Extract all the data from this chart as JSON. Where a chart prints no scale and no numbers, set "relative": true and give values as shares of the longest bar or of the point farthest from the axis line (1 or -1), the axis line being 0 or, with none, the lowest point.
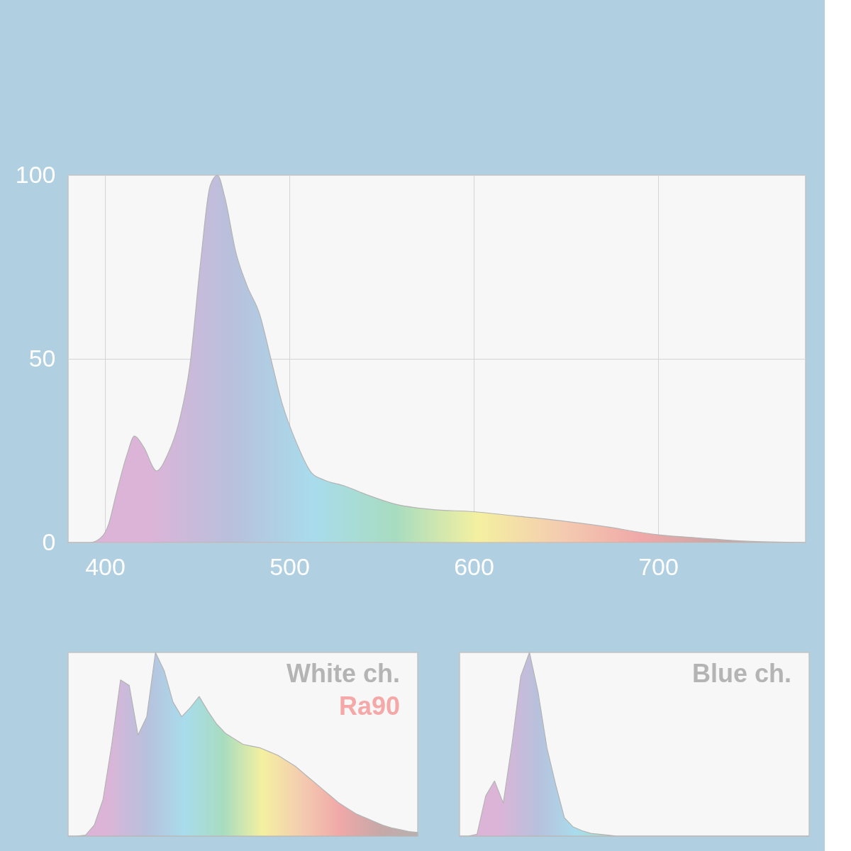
{
  "chart_data": [
    {
      "type": "area",
      "xlim": [
        380,
        780
      ],
      "ylim": [
        0,
        100
      ],
      "xticks": [
        400,
        500,
        600,
        700
      ],
      "yticks": [
        0,
        50,
        100
      ],
      "grid": true,
      "series": [
        {
          "color": "#b4b4b4",
          "x": [
            380,
            392,
            398,
            402,
            406,
            412,
            416,
            421,
            428,
            434,
            440,
            446,
            452,
            457,
            461,
            465,
            471,
            477,
            484,
            490,
            496,
            504,
            512,
            519,
            530,
            542,
            557,
            577,
            600,
            623,
            646,
            669,
            700,
            723,
            746,
            780
          ],
          "values": [
            0,
            0,
            1.4,
            5,
            13,
            24,
            29,
            26,
            19.5,
            24,
            32.5,
            48,
            77,
            97,
            100,
            94,
            79,
            70,
            62,
            50,
            38,
            27,
            19,
            17,
            15.4,
            13,
            10.5,
            9,
            8.4,
            7.2,
            6,
            4.5,
            2.1,
            1.2,
            0.4,
            0
          ]
        }
      ]
    },
    {
      "type": "area",
      "relative": true,
      "categories": [
        null,
        null,
        null,
        null,
        null,
        null,
        null,
        null,
        null,
        null,
        null,
        null,
        null,
        null,
        null,
        null,
        null,
        null,
        null,
        null,
        null,
        null,
        null,
        null,
        null,
        null,
        null,
        null,
        null,
        null,
        null,
        null,
        null,
        null,
        null,
        null,
        null,
        null,
        null,
        null,
        null
      ],
      "annotations": [
        "White ch.",
        "Ra90"
      ],
      "series": [
        {
          "color": "#b4b4b4",
          "values": [
            0,
            0,
            0.005,
            0.06,
            0.2,
            0.5,
            0.85,
            0.82,
            0.55,
            0.65,
            1,
            0.9,
            0.73,
            0.65,
            0.7,
            0.76,
            0.68,
            0.61,
            0.56,
            0.53,
            0.5,
            0.49,
            0.48,
            0.46,
            0.44,
            0.41,
            0.38,
            0.34,
            0.3,
            0.26,
            0.22,
            0.18,
            0.15,
            0.12,
            0.1,
            0.08,
            0.06,
            0.045,
            0.035,
            0.025,
            0.02
          ]
        }
      ]
    },
    {
      "type": "area",
      "relative": true,
      "categories": [
        null,
        null,
        null,
        null,
        null,
        null,
        null,
        null,
        null,
        null,
        null,
        null,
        null,
        null,
        null,
        null,
        null,
        null,
        null,
        null,
        null,
        null,
        null,
        null,
        null,
        null,
        null,
        null,
        null,
        null,
        null,
        null,
        null,
        null,
        null,
        null,
        null,
        null,
        null,
        null,
        null
      ],
      "annotations": [
        "Blue ch."
      ],
      "series": [
        {
          "color": "#b4b4b4",
          "values": [
            0,
            0,
            0.01,
            0.22,
            0.3,
            0.18,
            0.5,
            0.87,
            1,
            0.78,
            0.48,
            0.28,
            0.1,
            0.05,
            0.03,
            0.015,
            0.01,
            0.005,
            0,
            0,
            0,
            0,
            0,
            0,
            0,
            0,
            0,
            0,
            0,
            0,
            0,
            0,
            0,
            0,
            0,
            0,
            0,
            0,
            0,
            0,
            0
          ]
        }
      ]
    }
  ]
}
